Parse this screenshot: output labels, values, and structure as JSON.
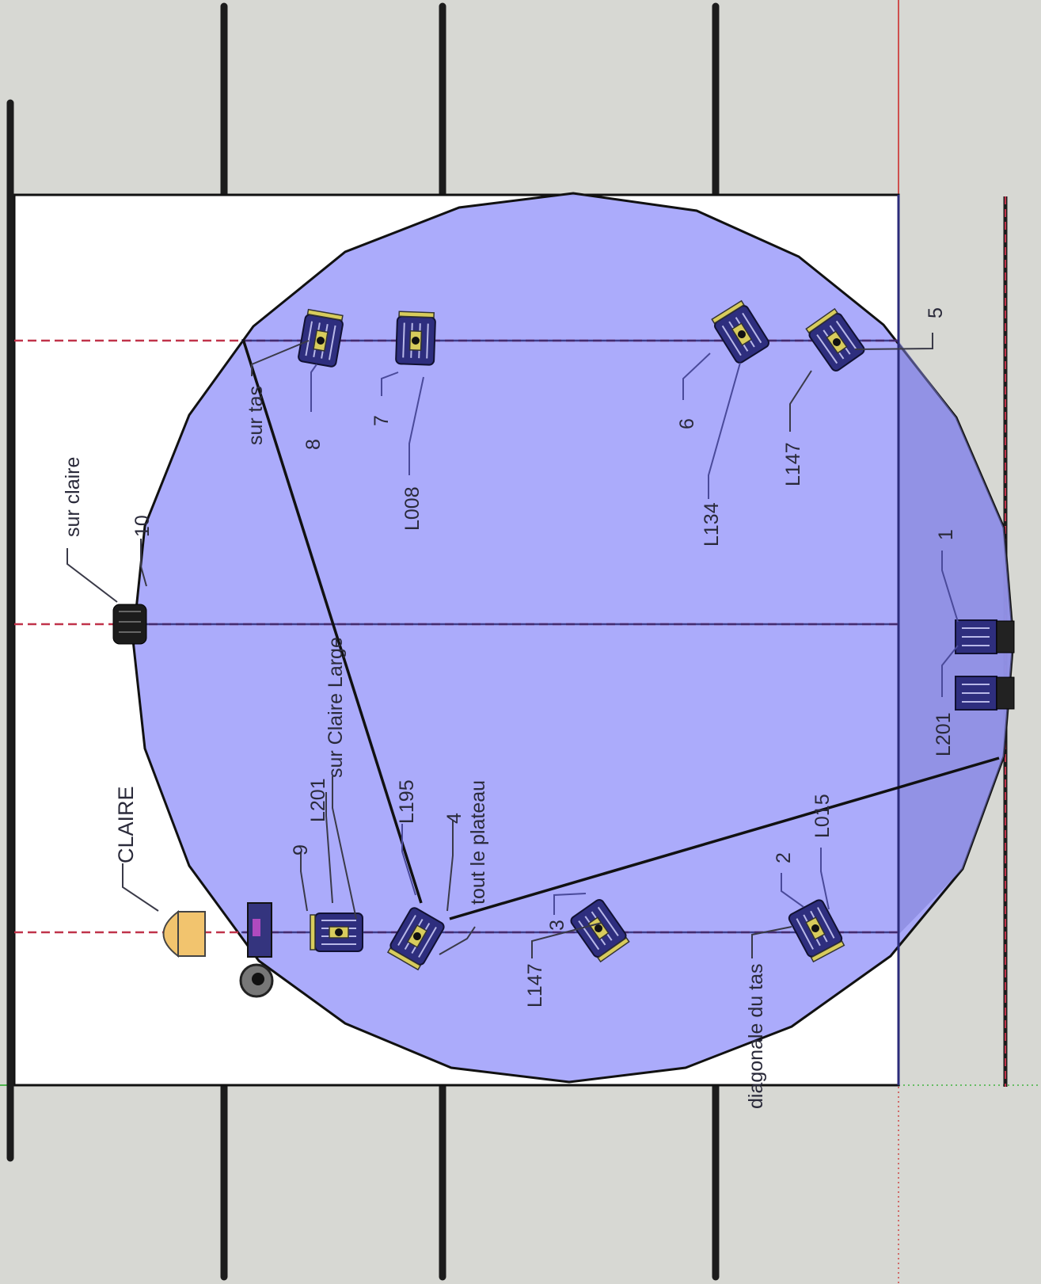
{
  "labels": {
    "sur_claire": "sur claire",
    "n10": "10",
    "claire": "CLAIRE",
    "sur_tas": "sur tas",
    "n8": "8",
    "n7": "7",
    "l008": "L008",
    "n6": "6",
    "l134": "L134",
    "l147_top": "L147",
    "n5": "5",
    "n1": "1",
    "l201_right": "L201",
    "sur_claire_large": "sur Claire Large",
    "l201_left": "L201",
    "n9": "9",
    "l195": "L195",
    "n4": "4",
    "tout_le_plateau": "tout le plateau",
    "n3": "3",
    "l147_bottom": "L147",
    "n2": "2",
    "l015": "L015",
    "diagonale_du_tas": "diagonale du tas"
  },
  "icons": {
    "spotlight": "spotlight-icon",
    "fresnel": "fresnel-icon",
    "camera": "camera-icon"
  },
  "colors": {
    "background": "#d7d8d3",
    "stage": "#ffffff",
    "light_pool": "#a6a6fb",
    "truss": "#1c1c1c",
    "beam_red": "#c0334a",
    "fixture_body": "#2e2e7e",
    "fixture_yoke": "#d8cc5c",
    "claire_fixture": "#f2c46e"
  }
}
